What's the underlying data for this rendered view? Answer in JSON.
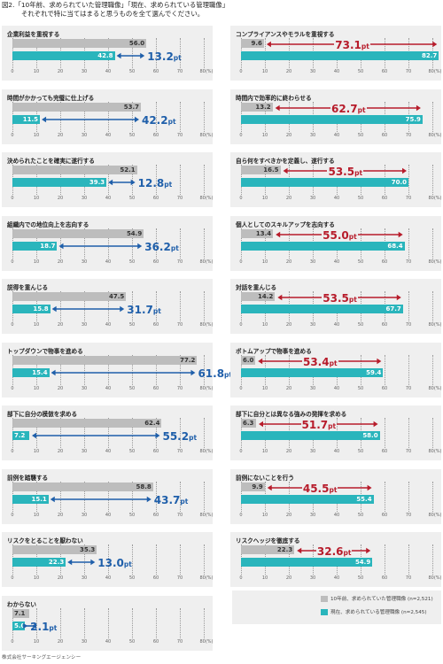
{
  "title_line1": "図2.「10年前、求められていた管理職像」「現在、求められている管理職像」",
  "title_line2": "それぞれで特に当てはまると思うものを全て選んでください。",
  "source": "株式会社サーキングエージェンシー",
  "colors": {
    "past": "#bdbdbd",
    "current": "#2ab5bc",
    "diff_blue": "#1f5faa",
    "diff_red": "#b71c2b",
    "panel_bg": "#efefef"
  },
  "chart_data": {
    "type": "bar",
    "orientation": "horizontal",
    "xlim": [
      0,
      80
    ],
    "xticks": [
      "0",
      "10",
      "20",
      "30",
      "40",
      "50",
      "60",
      "70",
      "80(%)"
    ],
    "legend": {
      "past": "10年前、求められていた管理職像 (n=2,521)",
      "current": "現在、求められている管理職像 (n=2,545)"
    },
    "series_names": [
      "10年前、求められていた管理職像",
      "現在、求められている管理職像"
    ],
    "panels": [
      {
        "label": "企業利益を重視する",
        "past": 56.0,
        "current": 42.8,
        "diff_num": "13.2",
        "diff_unit": "pt",
        "direction": "down"
      },
      {
        "label": "コンプライアンスやモラルを重視する",
        "past": 9.6,
        "current": 82.7,
        "diff_num": "73.1",
        "diff_unit": "pt",
        "direction": "up"
      },
      {
        "label": "時間がかかっても完璧に仕上げる",
        "past": 53.7,
        "current": 11.5,
        "diff_num": "42.2",
        "diff_unit": "pt",
        "direction": "down"
      },
      {
        "label": "時間内で効率的に終わらせる",
        "past": 13.2,
        "current": 75.9,
        "diff_num": "62.7",
        "diff_unit": "pt",
        "direction": "up"
      },
      {
        "label": "決められたことを確実に遂行する",
        "past": 52.1,
        "current": 39.3,
        "diff_num": "12.8",
        "diff_unit": "pt",
        "direction": "down"
      },
      {
        "label": "自ら何をすべきかを定義し、遂行する",
        "past": 16.5,
        "current": 70.0,
        "diff_num": "53.5",
        "diff_unit": "pt",
        "direction": "up"
      },
      {
        "label": "組織内での地位向上を志向する",
        "past": 54.9,
        "current": 18.7,
        "diff_num": "36.2",
        "diff_unit": "pt",
        "direction": "down"
      },
      {
        "label": "個人としてのスキルアップを志向する",
        "past": 13.4,
        "current": 68.4,
        "diff_num": "55.0",
        "diff_unit": "pt",
        "direction": "up"
      },
      {
        "label": "説得を重んじる",
        "past": 47.5,
        "current": 15.8,
        "diff_num": "31.7",
        "diff_unit": "pt",
        "direction": "down"
      },
      {
        "label": "対話を重んじる",
        "past": 14.2,
        "current": 67.7,
        "diff_num": "53.5",
        "diff_unit": "pt",
        "direction": "up"
      },
      {
        "label": "トップダウンで物事を進める",
        "past": 77.2,
        "current": 15.4,
        "diff_num": "61.8",
        "diff_unit": "pt",
        "direction": "down"
      },
      {
        "label": "ボトムアップで物事を進める",
        "past": 6.0,
        "current": 59.4,
        "diff_num": "53.4",
        "diff_unit": "pt",
        "direction": "up"
      },
      {
        "label": "部下に自分の模倣を求める",
        "past": 62.4,
        "current": 7.2,
        "diff_num": "55.2",
        "diff_unit": "pt",
        "direction": "down"
      },
      {
        "label": "部下に自分とは異なる強みの発揮を求める",
        "past": 6.3,
        "current": 58.0,
        "diff_num": "51.7",
        "diff_unit": "pt",
        "direction": "up"
      },
      {
        "label": "前例を踏襲する",
        "past": 58.8,
        "current": 15.1,
        "diff_num": "43.7",
        "diff_unit": "pt",
        "direction": "down"
      },
      {
        "label": "前例にないことを行う",
        "past": 9.9,
        "current": 55.4,
        "diff_num": "45.5",
        "diff_unit": "pt",
        "direction": "up"
      },
      {
        "label": "リスクをとることを厭わない",
        "past": 35.3,
        "current": 22.3,
        "diff_num": "13.0",
        "diff_unit": "pt",
        "direction": "down"
      },
      {
        "label": "リスクヘッジを徹底する",
        "past": 22.3,
        "current": 54.9,
        "diff_num": "32.6",
        "diff_unit": "pt",
        "direction": "up"
      },
      {
        "label": "わからない",
        "past": 7.1,
        "current": 5.0,
        "diff_num": "2.1",
        "diff_unit": "pt",
        "direction": "down"
      }
    ]
  }
}
